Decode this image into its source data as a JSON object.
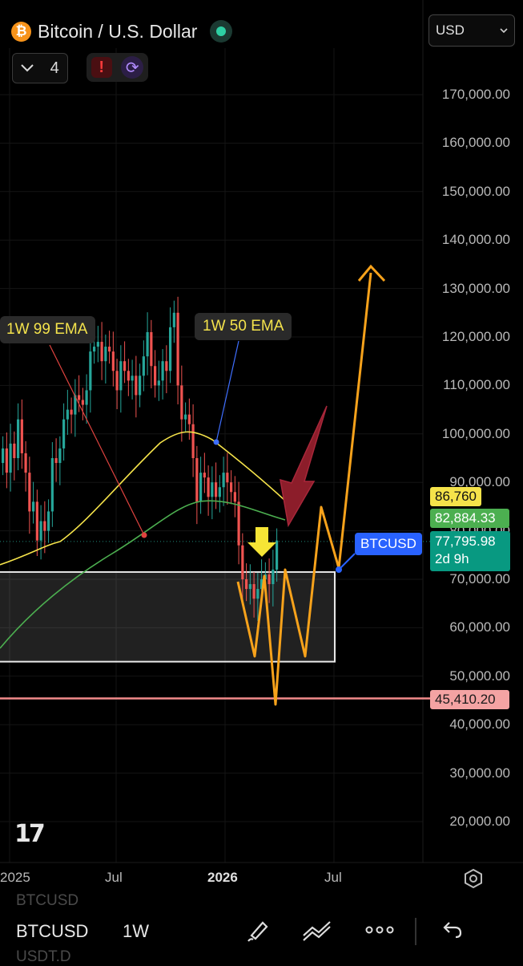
{
  "header": {
    "title": "Bitcoin / U.S. Dollar",
    "coin_letter": "₿",
    "indicator_count": "4",
    "currency": "USD"
  },
  "y_axis": {
    "ticks": [
      "170,000.00",
      "160,000.00",
      "150,000.00",
      "140,000.00",
      "130,000.00",
      "120,000.00",
      "110,000.00",
      "100,000.00",
      "90,000.00",
      "80,000.00",
      "70,000.00",
      "60,000.00",
      "50,000.00",
      "40,000.00",
      "30,000.00",
      "20,000.00"
    ]
  },
  "x_axis": {
    "ticks": [
      "2025",
      "Jul",
      "2026",
      "Jul"
    ]
  },
  "price_tags": {
    "ema50": "86,760",
    "ema99": "82,884.33",
    "last_price": "77,795.98",
    "countdown": "2d 9h",
    "support": "45,410.20"
  },
  "annotations": {
    "ema99_label": "1W 99 EMA",
    "ema50_label": "1W 50 EMA",
    "symbol_badge": "BTCUSD"
  },
  "bottom_toolbar": {
    "symbol": "BTCUSD",
    "interval": "1W",
    "ghost_above": "BTCUSD",
    "ghost_below": "USDT.D"
  },
  "colors": {
    "up": "#26a69a",
    "down": "#ef5350",
    "ema50": "#f5e34a",
    "ema99": "#4caf50",
    "projection": "#f7a21b",
    "support_line": "#f28b8b",
    "tag_blue": "#2962ff"
  },
  "chart_data": {
    "type": "candlestick",
    "timeframe": "1W",
    "price_ticks": [
      170000,
      160000,
      150000,
      140000,
      130000,
      120000,
      110000,
      100000,
      90000,
      80000,
      70000,
      60000,
      50000,
      40000,
      30000,
      20000
    ],
    "last_price": 77795.98,
    "ema50": 86760,
    "ema99": 82884.33,
    "support": 45410.2,
    "zone_range": [
      53000,
      71500
    ]
  }
}
